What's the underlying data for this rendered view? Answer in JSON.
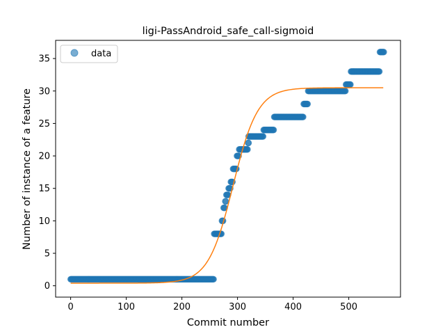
{
  "chart_data": {
    "type": "scatter",
    "title": "ligi-PassAndroid_safe_call-sigmoid",
    "xlabel": "Commit number",
    "ylabel": "Number of instance of a feature",
    "xlim": [
      -27,
      593
    ],
    "ylim": [
      -1.75,
      37.8
    ],
    "xticks": [
      0,
      100,
      200,
      300,
      400,
      500
    ],
    "yticks": [
      0,
      5,
      10,
      15,
      20,
      25,
      30,
      35
    ],
    "legend": {
      "position": "top-left",
      "entries": [
        "data"
      ]
    },
    "colors": {
      "data": "#1f77b4",
      "fit": "#ff7f0e"
    },
    "series": [
      {
        "name": "data",
        "kind": "scatter",
        "step_segments": [
          {
            "x_start": 0,
            "x_end": 257,
            "y": 1
          },
          {
            "x_start": 258,
            "x_end": 271,
            "y": 8
          },
          {
            "x_start": 272,
            "x_end": 274,
            "y": 10
          },
          {
            "x_start": 275,
            "x_end": 277,
            "y": 12
          },
          {
            "x_start": 278,
            "x_end": 279,
            "y": 13
          },
          {
            "x_start": 280,
            "x_end": 283,
            "y": 14
          },
          {
            "x_start": 284,
            "x_end": 287,
            "y": 15
          },
          {
            "x_start": 288,
            "x_end": 291,
            "y": 16
          },
          {
            "x_start": 292,
            "x_end": 298,
            "y": 18
          },
          {
            "x_start": 299,
            "x_end": 302,
            "y": 20
          },
          {
            "x_start": 303,
            "x_end": 318,
            "y": 21
          },
          {
            "x_start": 319,
            "x_end": 320,
            "y": 22
          },
          {
            "x_start": 320,
            "x_end": 346,
            "y": 23
          },
          {
            "x_start": 347,
            "x_end": 365,
            "y": 24
          },
          {
            "x_start": 366,
            "x_end": 418,
            "y": 26
          },
          {
            "x_start": 419,
            "x_end": 426,
            "y": 28
          },
          {
            "x_start": 427,
            "x_end": 494,
            "y": 30
          },
          {
            "x_start": 495,
            "x_end": 503,
            "y": 31
          },
          {
            "x_start": 504,
            "x_end": 555,
            "y": 33
          },
          {
            "x_start": 556,
            "x_end": 563,
            "y": 36
          }
        ]
      },
      {
        "name": "",
        "kind": "line",
        "sigmoid": {
          "L": 30.1,
          "k": 0.045,
          "x0": 292,
          "b": 0.4
        },
        "x_range": [
          0,
          563
        ]
      }
    ]
  }
}
